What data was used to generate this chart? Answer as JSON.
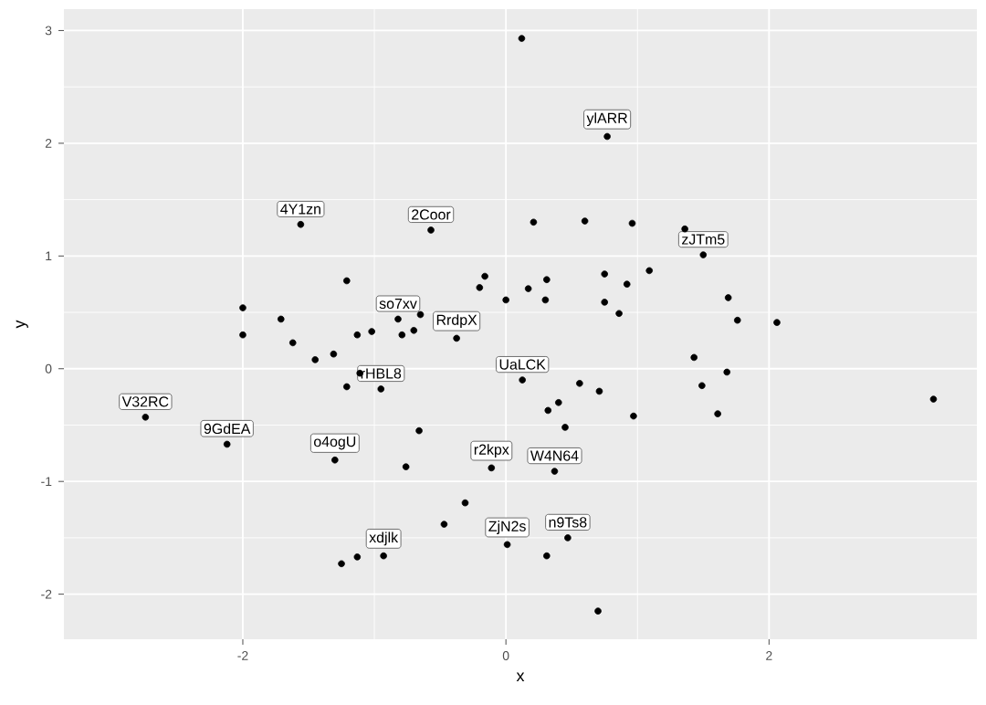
{
  "chart_data": {
    "type": "scatter",
    "xlabel": "x",
    "ylabel": "y",
    "color": "#000000",
    "marker": "circle",
    "grid": true,
    "xlim": [
      -3.36,
      3.58
    ],
    "ylim": [
      -2.4,
      3.19
    ],
    "xticks": [
      -2,
      0,
      2
    ],
    "yticks": [
      -2,
      -1,
      0,
      1,
      2,
      3
    ],
    "x": [
      -1.56,
      -0.57,
      -1.21,
      -2.0,
      -2.0,
      -1.71,
      -1.62,
      -1.45,
      -1.31,
      -1.13,
      -1.02,
      -0.82,
      -0.79,
      -0.7,
      -0.65,
      -0.375,
      -0.2,
      -0.16,
      0.12,
      0.77,
      0.21,
      0.6,
      0.96,
      1.36,
      1.5,
      0.0,
      0.17,
      0.31,
      0.3,
      0.75,
      0.92,
      1.09,
      0.75,
      0.86,
      1.69,
      1.76,
      2.06,
      1.43,
      -2.74,
      -2.12,
      -1.11,
      -1.21,
      -0.95,
      -0.66,
      -1.3,
      -0.76,
      -0.11,
      -0.31,
      -0.47,
      -1.25,
      -1.13,
      -0.93,
      1.68,
      1.49,
      1.61,
      3.25,
      0.125,
      0.56,
      0.71,
      0.32,
      0.4,
      0.45,
      0.97,
      0.37,
      0.01,
      0.31,
      0.47,
      0.7
    ],
    "values": [
      1.28,
      1.23,
      0.78,
      0.54,
      0.3,
      0.44,
      0.23,
      0.08,
      0.13,
      0.3,
      0.33,
      0.44,
      0.3,
      0.34,
      0.48,
      0.27,
      0.72,
      0.82,
      2.93,
      2.06,
      1.3,
      1.31,
      1.29,
      1.24,
      1.01,
      0.61,
      0.71,
      0.79,
      0.61,
      0.84,
      0.75,
      0.87,
      0.59,
      0.49,
      0.63,
      0.43,
      0.41,
      0.1,
      -0.43,
      -0.67,
      -0.04,
      -0.16,
      -0.18,
      -0.55,
      -0.81,
      -0.87,
      -0.88,
      -1.19,
      -1.38,
      -1.73,
      -1.67,
      -1.66,
      -0.03,
      -0.15,
      -0.4,
      -0.27,
      -0.1,
      -0.13,
      -0.2,
      -0.37,
      -0.3,
      -0.52,
      -0.42,
      -0.91,
      -1.56,
      -1.66,
      -1.5,
      -2.15
    ],
    "annotations": [
      {
        "text": "4Y1zn",
        "x": -1.56,
        "y": 1.28
      },
      {
        "text": "2Coor",
        "x": -0.57,
        "y": 1.23
      },
      {
        "text": "ylARR",
        "x": 0.77,
        "y": 2.06
      },
      {
        "text": "zJTm5",
        "x": 1.5,
        "y": 1.01
      },
      {
        "text": "so7xv",
        "x": -0.82,
        "y": 0.44
      },
      {
        "text": "RrdpX",
        "x": -0.375,
        "y": 0.27
      },
      {
        "text": "V32RC",
        "x": -2.74,
        "y": -0.43
      },
      {
        "text": "rHBL8",
        "x": -0.95,
        "y": -0.18
      },
      {
        "text": "UaLCK",
        "x": 0.125,
        "y": -0.1
      },
      {
        "text": "9GdEA",
        "x": -2.12,
        "y": -0.67
      },
      {
        "text": "o4ogU",
        "x": -1.3,
        "y": -0.81
      },
      {
        "text": "r2kpx",
        "x": -0.11,
        "y": -0.88
      },
      {
        "text": "W4N64",
        "x": 0.37,
        "y": -0.91
      },
      {
        "text": "n9Ts8",
        "x": 0.47,
        "y": -1.5
      },
      {
        "text": "ZjN2s",
        "x": 0.01,
        "y": -1.56
      },
      {
        "text": "xdjlk",
        "x": -0.93,
        "y": -1.66
      }
    ]
  }
}
